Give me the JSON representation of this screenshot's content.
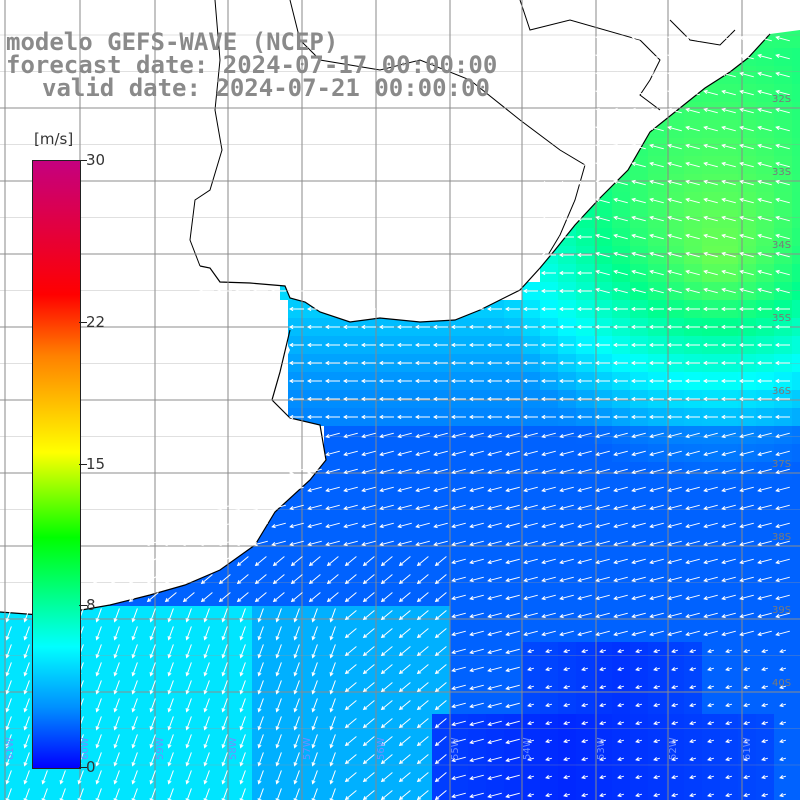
{
  "title": {
    "line1": "modelo GEFS-WAVE (NCEP)",
    "line2": "forecast date: 2024-07-17 00:00:00",
    "line3": "valid date: 2024-07-21 00:00:00"
  },
  "colorbar": {
    "unit": "[m/s]",
    "ticks": [
      {
        "label": "30",
        "value": 30
      },
      {
        "label": "22",
        "value": 22
      },
      {
        "label": "15",
        "value": 15
      },
      {
        "label": "8",
        "value": 8
      },
      {
        "label": "0",
        "value": 0
      }
    ],
    "colors": [
      "#c5007f",
      "#ff0000",
      "#ff8000",
      "#ffff00",
      "#00ff00",
      "#00ffff",
      "#0090ff",
      "#0000ff"
    ]
  },
  "map": {
    "lat_labels": [
      "32S",
      "33S",
      "34S",
      "35S",
      "36S",
      "37S",
      "38S",
      "39S",
      "40S"
    ],
    "lon_labels": [
      "61W",
      "60W",
      "59W",
      "58W",
      "57W",
      "56W",
      "55W",
      "54W",
      "53W",
      "52W",
      "51W"
    ],
    "land_color": "#ffffff",
    "coast_color": "#000000",
    "arrow_color": "#ffffff"
  }
}
